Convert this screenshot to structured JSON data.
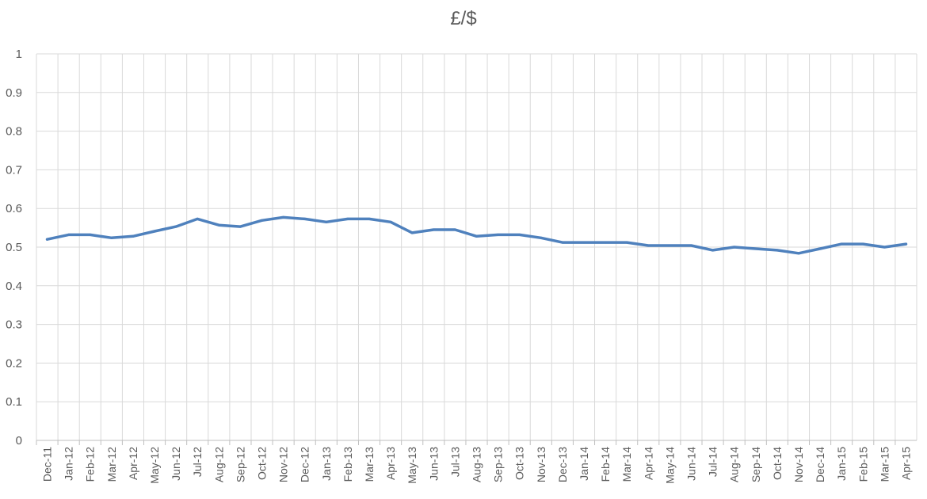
{
  "chart_data": {
    "type": "line",
    "title": "£/$",
    "xlabel": "",
    "ylabel": "",
    "ylim": [
      0,
      1
    ],
    "yticks": [
      "0",
      "0.1",
      "0.2",
      "0.3",
      "0.4",
      "0.5",
      "0.6",
      "0.7",
      "0.8",
      "0.9",
      "1"
    ],
    "grid": true,
    "legend": "none",
    "line_color": "#4F81BD",
    "grid_color": "#D9D9D9",
    "categories": [
      "Dec-11",
      "Jan-12",
      "Feb-12",
      "Mar-12",
      "Apr-12",
      "May-12",
      "Jun-12",
      "Jul-12",
      "Aug-12",
      "Sep-12",
      "Oct-12",
      "Nov-12",
      "Dec-12",
      "Jan-13",
      "Feb-13",
      "Mar-13",
      "Apr-13",
      "May-13",
      "Jun-13",
      "Jul-13",
      "Aug-13",
      "Sep-13",
      "Oct-13",
      "Nov-13",
      "Dec-13",
      "Jan-14",
      "Feb-14",
      "Mar-14",
      "Apr-14",
      "May-14",
      "Jun-14",
      "Jul-14",
      "Aug-14",
      "Sep-14",
      "Oct-14",
      "Nov-14",
      "Dec-14",
      "Jan-15",
      "Feb-15",
      "Mar-15",
      "Apr-15"
    ],
    "series": [
      {
        "values": [
          0.52,
          0.532,
          0.532,
          0.524,
          0.528,
          0.541,
          0.553,
          0.573,
          0.557,
          0.553,
          0.569,
          0.577,
          0.573,
          0.565,
          0.573,
          0.573,
          0.565,
          0.537,
          0.545,
          0.545,
          0.528,
          0.532,
          0.532,
          0.524,
          0.512,
          0.512,
          0.512,
          0.512,
          0.504,
          0.504,
          0.504,
          0.492,
          0.5,
          0.496,
          0.492,
          0.484,
          0.496,
          0.508,
          0.508,
          0.5,
          0.508
        ]
      }
    ]
  }
}
